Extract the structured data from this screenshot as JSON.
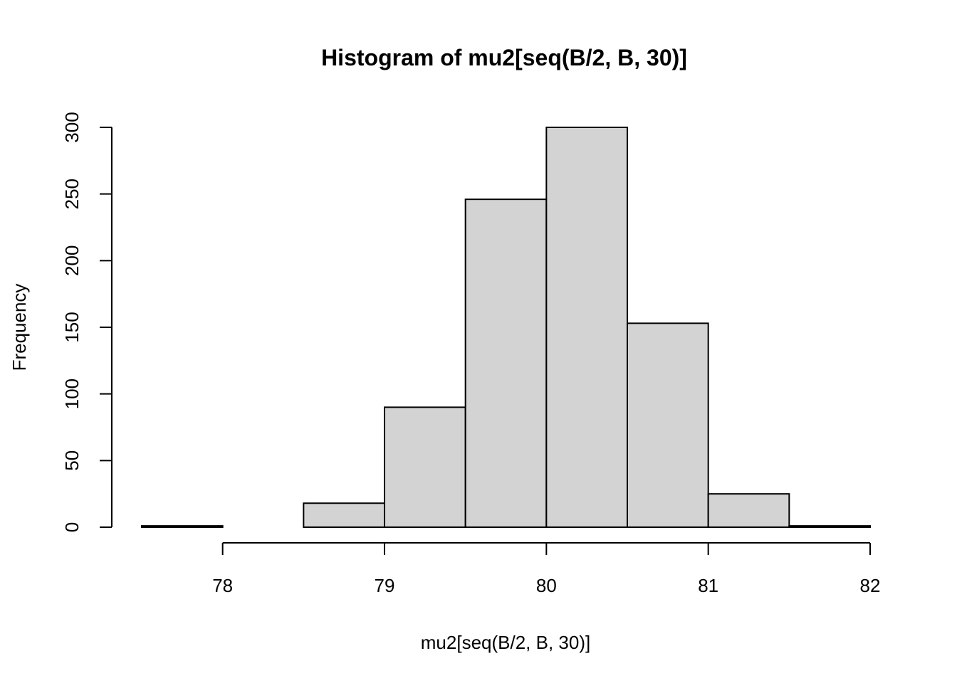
{
  "chart_data": {
    "type": "bar",
    "title": "Histogram of mu2[seq(B/2, B, 30)]",
    "xlabel": "mu2[seq(B/2, B, 30)]",
    "ylabel": "Frequency",
    "bin_edges": [
      77.5,
      78,
      78.5,
      79,
      79.5,
      80,
      80.5,
      81,
      81.5,
      82
    ],
    "values": [
      1,
      0,
      18,
      90,
      246,
      300,
      153,
      25,
      1
    ],
    "xlim": [
      77.5,
      82
    ],
    "ylim": [
      0,
      300
    ],
    "x_ticks": [
      78,
      79,
      80,
      81,
      82
    ],
    "y_ticks": [
      0,
      50,
      100,
      150,
      200,
      250,
      300
    ],
    "bar_fill": "#d3d3d3",
    "bar_stroke": "#000000",
    "grid": false,
    "legend": "none"
  }
}
